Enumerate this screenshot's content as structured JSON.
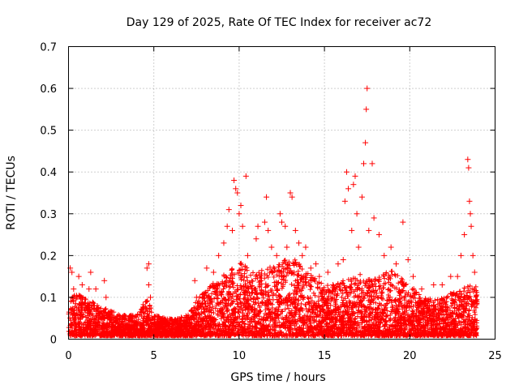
{
  "chart_data": {
    "type": "scatter",
    "title": "Day 129 of 2025, Rate Of TEC Index for receiver ac72",
    "xlabel": "GPS time / hours",
    "ylabel": "ROTI / TECUs",
    "xlim": [
      0,
      25
    ],
    "ylim": [
      0,
      0.7
    ],
    "xticks": [
      0,
      5,
      10,
      15,
      20,
      25
    ],
    "xtick_labels": [
      "0",
      "5",
      "10",
      "15",
      "20",
      "25"
    ],
    "yticks": [
      0,
      0.1,
      0.2,
      0.3,
      0.4,
      0.5,
      0.6,
      0.7
    ],
    "ytick_labels": [
      "0",
      "0.1",
      "0.2",
      "0.3",
      "0.4",
      "0.5",
      "0.6",
      "0.7"
    ],
    "grid": true,
    "marker": "plus",
    "color": "#ff0000",
    "points": [
      [
        0.1,
        0.17
      ],
      [
        0.2,
        0.16
      ],
      [
        0.3,
        0.12
      ],
      [
        0.5,
        0.1
      ],
      [
        0.6,
        0.15
      ],
      [
        0.8,
        0.13
      ],
      [
        1.2,
        0.12
      ],
      [
        1.3,
        0.16
      ],
      [
        1.6,
        0.12
      ],
      [
        2.1,
        0.14
      ],
      [
        2.2,
        0.1
      ],
      [
        4.6,
        0.17
      ],
      [
        4.7,
        0.18
      ],
      [
        4.7,
        0.13
      ],
      [
        4.8,
        0.1
      ],
      [
        7.4,
        0.14
      ],
      [
        7.5,
        0.1
      ],
      [
        8.1,
        0.17
      ],
      [
        8.5,
        0.16
      ],
      [
        8.8,
        0.2
      ],
      [
        9.1,
        0.23
      ],
      [
        9.3,
        0.27
      ],
      [
        9.4,
        0.31
      ],
      [
        9.6,
        0.26
      ],
      [
        9.7,
        0.38
      ],
      [
        9.8,
        0.36
      ],
      [
        9.9,
        0.35
      ],
      [
        10.0,
        0.3
      ],
      [
        10.1,
        0.32
      ],
      [
        10.2,
        0.27
      ],
      [
        10.4,
        0.39
      ],
      [
        10.5,
        0.2
      ],
      [
        11.0,
        0.24
      ],
      [
        11.1,
        0.27
      ],
      [
        11.5,
        0.28
      ],
      [
        11.6,
        0.34
      ],
      [
        11.7,
        0.26
      ],
      [
        11.9,
        0.22
      ],
      [
        12.2,
        0.2
      ],
      [
        12.4,
        0.3
      ],
      [
        12.5,
        0.28
      ],
      [
        12.7,
        0.27
      ],
      [
        12.8,
        0.22
      ],
      [
        13.0,
        0.35
      ],
      [
        13.1,
        0.34
      ],
      [
        13.3,
        0.26
      ],
      [
        13.5,
        0.23
      ],
      [
        13.7,
        0.2
      ],
      [
        13.9,
        0.22
      ],
      [
        14.2,
        0.17
      ],
      [
        14.5,
        0.18
      ],
      [
        14.7,
        0.15
      ],
      [
        15.2,
        0.16
      ],
      [
        15.5,
        0.13
      ],
      [
        15.8,
        0.18
      ],
      [
        16.1,
        0.19
      ],
      [
        16.2,
        0.33
      ],
      [
        16.3,
        0.4
      ],
      [
        16.4,
        0.36
      ],
      [
        16.6,
        0.26
      ],
      [
        16.7,
        0.37
      ],
      [
        16.8,
        0.39
      ],
      [
        16.9,
        0.3
      ],
      [
        17.0,
        0.22
      ],
      [
        17.2,
        0.34
      ],
      [
        17.3,
        0.42
      ],
      [
        17.4,
        0.47
      ],
      [
        17.45,
        0.55
      ],
      [
        17.5,
        0.6
      ],
      [
        17.6,
        0.26
      ],
      [
        17.8,
        0.42
      ],
      [
        17.9,
        0.29
      ],
      [
        18.2,
        0.25
      ],
      [
        18.5,
        0.2
      ],
      [
        18.9,
        0.22
      ],
      [
        19.2,
        0.18
      ],
      [
        19.6,
        0.28
      ],
      [
        19.9,
        0.19
      ],
      [
        20.2,
        0.15
      ],
      [
        20.7,
        0.12
      ],
      [
        21.4,
        0.13
      ],
      [
        21.9,
        0.13
      ],
      [
        22.4,
        0.15
      ],
      [
        22.8,
        0.15
      ],
      [
        23.0,
        0.2
      ],
      [
        23.2,
        0.25
      ],
      [
        23.4,
        0.43
      ],
      [
        23.45,
        0.41
      ],
      [
        23.5,
        0.33
      ],
      [
        23.55,
        0.3
      ],
      [
        23.6,
        0.27
      ],
      [
        23.7,
        0.2
      ],
      [
        23.8,
        0.16
      ]
    ]
  }
}
